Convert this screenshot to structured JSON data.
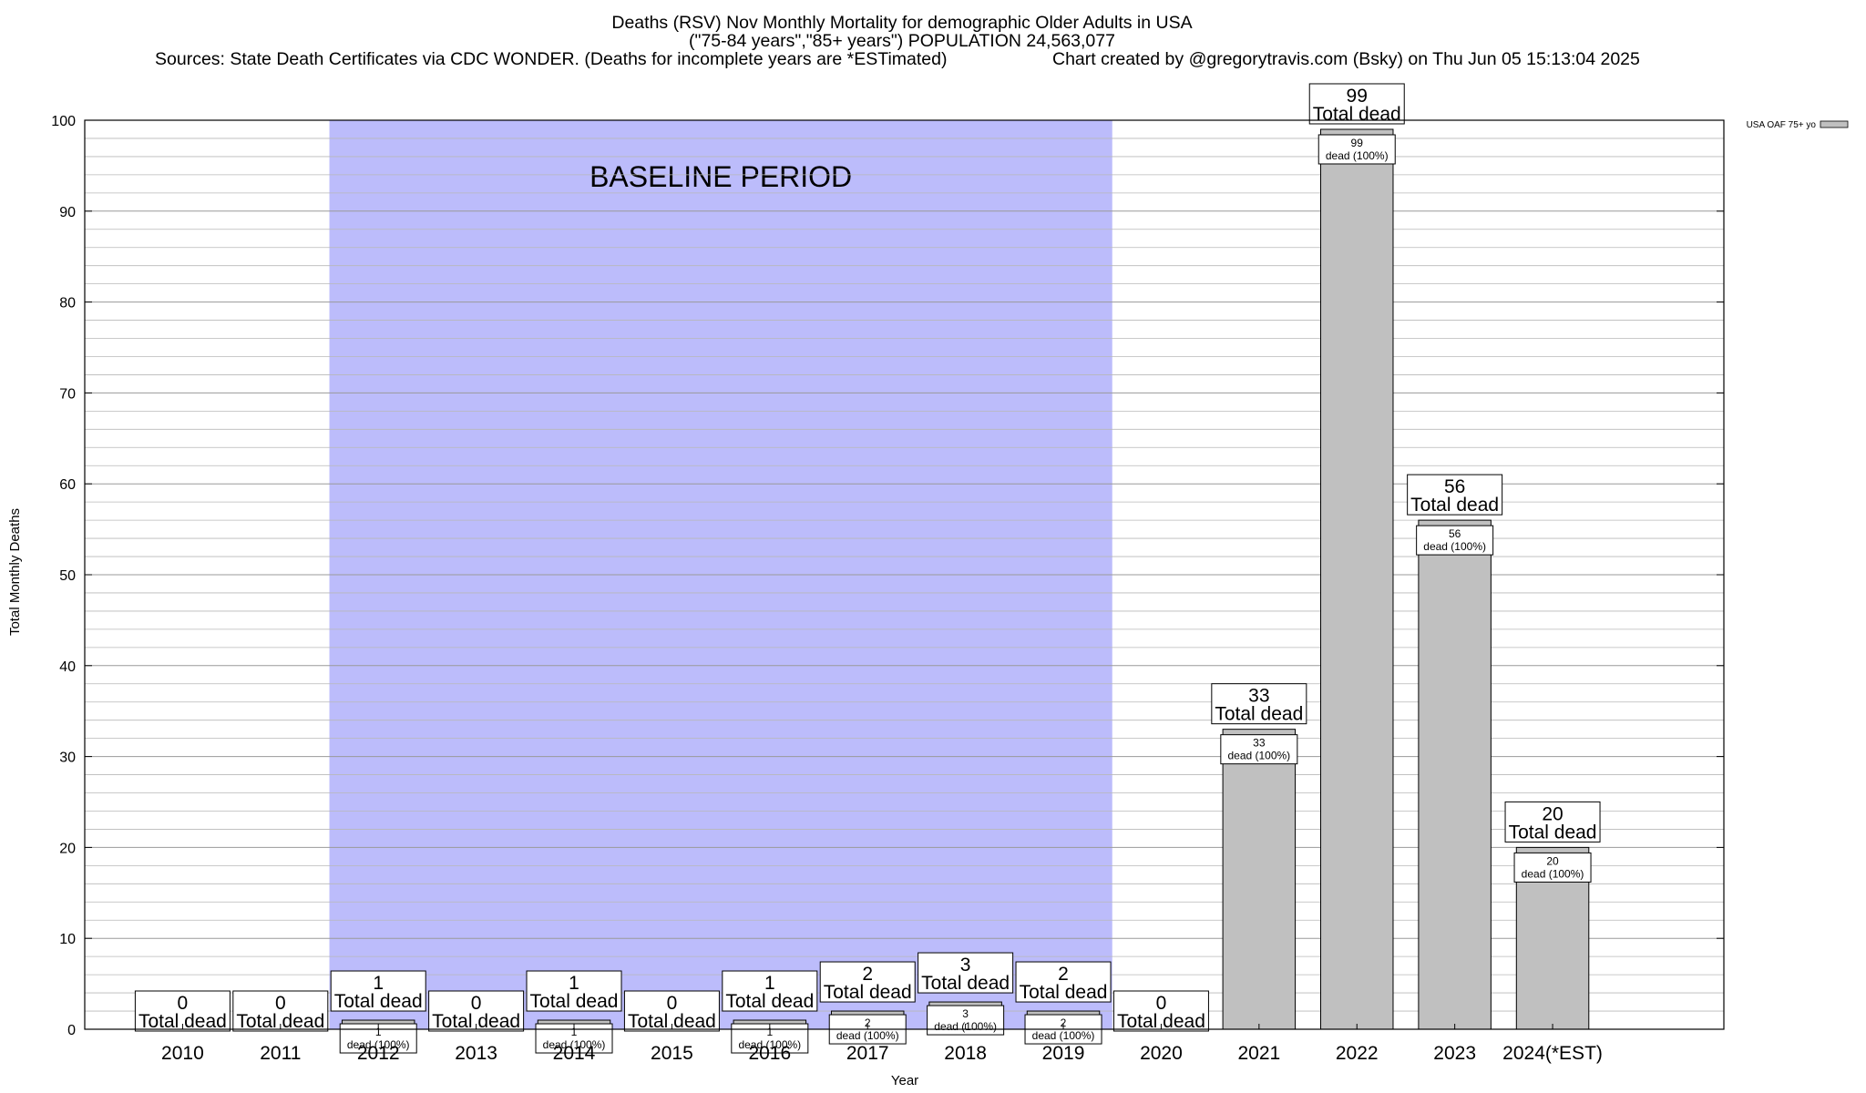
{
  "chart_data": {
    "type": "bar",
    "title": "Deaths (RSV) Nov Monthly Mortality for demographic Older Adults in USA",
    "subtitle": "(\"75-84 years\",\"85+ years\") POPULATION 24,563,077",
    "sources": "Sources: State Death Certificates via CDC WONDER. (Deaths for incomplete years are *ESTimated)",
    "credit": "Chart created by @gregorytravis.com (Bsky) on Thu Jun 05 15:13:04 2025",
    "xlabel": "Year",
    "ylabel": "Total Monthly Deaths",
    "ylim": [
      0,
      100
    ],
    "y_ticks": [
      "0",
      "10",
      "20",
      "30",
      "40",
      "50",
      "60",
      "70",
      "80",
      "90",
      "100"
    ],
    "grid": true,
    "categories": [
      "2010",
      "2011",
      "2012",
      "2013",
      "2014",
      "2015",
      "2016",
      "2017",
      "2018",
      "2019",
      "2020",
      "2021",
      "2022",
      "2023",
      "2024(*EST)"
    ],
    "series": [
      {
        "name": "USA OAF 75+ yo",
        "color": "#c0c0c0",
        "values": [
          0,
          0,
          1,
          0,
          1,
          0,
          1,
          2,
          3,
          2,
          0,
          33,
          99,
          56,
          20
        ]
      }
    ],
    "total_labels": [
      {
        "value": "0",
        "text": "Total dead"
      },
      {
        "value": "0",
        "text": "Total dead"
      },
      {
        "value": "1",
        "text": "Total dead"
      },
      {
        "value": "0",
        "text": "Total dead"
      },
      {
        "value": "1",
        "text": "Total dead"
      },
      {
        "value": "0",
        "text": "Total dead"
      },
      {
        "value": "1",
        "text": "Total dead"
      },
      {
        "value": "2",
        "text": "Total dead"
      },
      {
        "value": "3",
        "text": "Total dead"
      },
      {
        "value": "2",
        "text": "Total dead"
      },
      {
        "value": "0",
        "text": "Total dead"
      },
      {
        "value": "33",
        "text": "Total dead"
      },
      {
        "value": "99",
        "text": "Total dead"
      },
      {
        "value": "56",
        "text": "Total dead"
      },
      {
        "value": "20",
        "text": "Total dead"
      }
    ],
    "inner_labels": [
      null,
      null,
      {
        "value": "1",
        "text": "dead (100%)"
      },
      null,
      {
        "value": "1",
        "text": "dead (100%)"
      },
      null,
      {
        "value": "1",
        "text": "dead (100%)"
      },
      {
        "value": "2",
        "text": "dead (100%)"
      },
      {
        "value": "3",
        "text": "dead (100%)"
      },
      {
        "value": "2",
        "text": "dead (100%)"
      },
      null,
      {
        "value": "33",
        "text": "dead (100%)"
      },
      {
        "value": "99",
        "text": "dead (100%)"
      },
      {
        "value": "56",
        "text": "dead (100%)"
      },
      {
        "value": "20",
        "text": "dead (100%)"
      }
    ],
    "baseline": {
      "label": "BASELINE PERIOD",
      "from": "2012",
      "to": "2019",
      "color": "#bcbcfb"
    },
    "legend": {
      "label": "USA OAF 75+ yo",
      "position": "top-right"
    }
  }
}
